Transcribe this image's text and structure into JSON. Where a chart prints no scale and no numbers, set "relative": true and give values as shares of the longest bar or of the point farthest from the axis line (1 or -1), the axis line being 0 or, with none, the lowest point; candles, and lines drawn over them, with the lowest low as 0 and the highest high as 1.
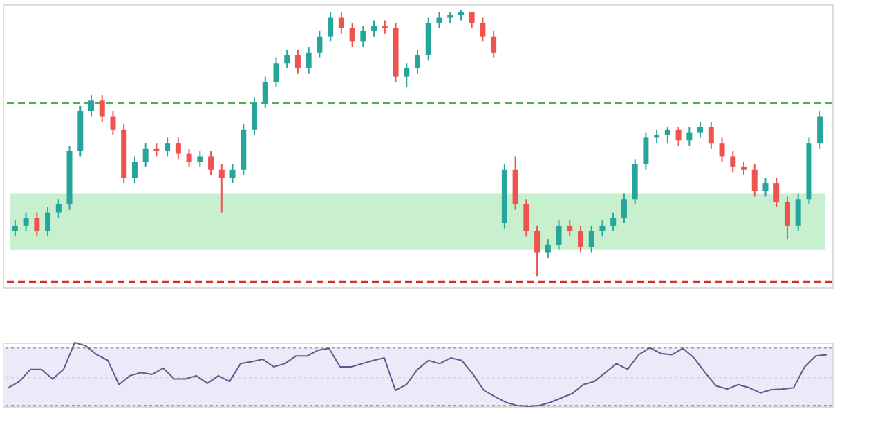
{
  "chart_data": [
    {
      "type": "candlestick",
      "relative": true,
      "categories": [
        null,
        null,
        null,
        null,
        null,
        null,
        null,
        null,
        null,
        null,
        null,
        null,
        null,
        null,
        null,
        null,
        null,
        null,
        null,
        null,
        null,
        null,
        null,
        null,
        null,
        null,
        null,
        null,
        null,
        null,
        null,
        null,
        null,
        null,
        null,
        null,
        null,
        null,
        null,
        null,
        null,
        null,
        null,
        null,
        null,
        null,
        null,
        null,
        null,
        null,
        null,
        null,
        null,
        null,
        null,
        null,
        null,
        null,
        null,
        null,
        null,
        null,
        null,
        null,
        null,
        null,
        null,
        null,
        null,
        null,
        null,
        null,
        null,
        null,
        null
      ],
      "ohlc": [
        [
          0.17,
          0.21,
          0.15,
          0.19
        ],
        [
          0.19,
          0.24,
          0.17,
          0.22
        ],
        [
          0.22,
          0.24,
          0.15,
          0.17
        ],
        [
          0.17,
          0.26,
          0.15,
          0.24
        ],
        [
          0.24,
          0.29,
          0.22,
          0.27
        ],
        [
          0.27,
          0.49,
          0.25,
          0.47
        ],
        [
          0.47,
          0.64,
          0.45,
          0.62
        ],
        [
          0.62,
          0.68,
          0.6,
          0.66
        ],
        [
          0.66,
          0.68,
          0.58,
          0.6
        ],
        [
          0.6,
          0.62,
          0.53,
          0.55
        ],
        [
          0.55,
          0.57,
          0.35,
          0.37
        ],
        [
          0.37,
          0.45,
          0.35,
          0.43
        ],
        [
          0.43,
          0.5,
          0.41,
          0.48
        ],
        [
          0.48,
          0.5,
          0.45,
          0.47
        ],
        [
          0.47,
          0.52,
          0.45,
          0.5
        ],
        [
          0.5,
          0.52,
          0.44,
          0.46
        ],
        [
          0.46,
          0.48,
          0.41,
          0.43
        ],
        [
          0.43,
          0.47,
          0.41,
          0.45
        ],
        [
          0.45,
          0.47,
          0.38,
          0.4
        ],
        [
          0.4,
          0.42,
          0.24,
          0.37
        ],
        [
          0.37,
          0.42,
          0.35,
          0.4
        ],
        [
          0.4,
          0.57,
          0.38,
          0.55
        ],
        [
          0.55,
          0.67,
          0.53,
          0.65
        ],
        [
          0.65,
          0.75,
          0.63,
          0.73
        ],
        [
          0.73,
          0.82,
          0.71,
          0.8
        ],
        [
          0.8,
          0.85,
          0.78,
          0.83
        ],
        [
          0.83,
          0.85,
          0.76,
          0.78
        ],
        [
          0.78,
          0.86,
          0.76,
          0.84
        ],
        [
          0.84,
          0.92,
          0.82,
          0.9
        ],
        [
          0.9,
          0.99,
          0.88,
          0.97
        ],
        [
          0.97,
          0.99,
          0.91,
          0.93
        ],
        [
          0.93,
          0.95,
          0.86,
          0.88
        ],
        [
          0.88,
          0.94,
          0.86,
          0.92
        ],
        [
          0.92,
          0.96,
          0.9,
          0.94
        ],
        [
          0.94,
          0.96,
          0.91,
          0.93
        ],
        [
          0.93,
          0.95,
          0.73,
          0.75
        ],
        [
          0.75,
          0.8,
          0.71,
          0.78
        ],
        [
          0.78,
          0.85,
          0.76,
          0.83
        ],
        [
          0.83,
          0.97,
          0.81,
          0.95
        ],
        [
          0.95,
          0.99,
          0.93,
          0.97
        ],
        [
          0.97,
          0.99,
          0.95,
          0.98
        ],
        [
          0.98,
          1.0,
          0.96,
          0.99
        ],
        [
          0.99,
          0.99,
          0.93,
          0.95
        ],
        [
          0.95,
          0.97,
          0.88,
          0.9
        ],
        [
          0.9,
          0.92,
          0.82,
          0.84
        ],
        [
          0.2,
          0.42,
          0.18,
          0.4
        ],
        [
          0.4,
          0.45,
          0.25,
          0.27
        ],
        [
          0.27,
          0.29,
          0.15,
          0.17
        ],
        [
          0.17,
          0.19,
          0.0,
          0.09
        ],
        [
          0.09,
          0.14,
          0.07,
          0.12
        ],
        [
          0.12,
          0.21,
          0.1,
          0.19
        ],
        [
          0.19,
          0.21,
          0.15,
          0.17
        ],
        [
          0.17,
          0.19,
          0.09,
          0.11
        ],
        [
          0.11,
          0.19,
          0.09,
          0.17
        ],
        [
          0.17,
          0.21,
          0.15,
          0.19
        ],
        [
          0.19,
          0.24,
          0.17,
          0.22
        ],
        [
          0.22,
          0.31,
          0.2,
          0.29
        ],
        [
          0.29,
          0.44,
          0.27,
          0.42
        ],
        [
          0.42,
          0.54,
          0.4,
          0.52
        ],
        [
          0.52,
          0.55,
          0.5,
          0.53
        ],
        [
          0.53,
          0.56,
          0.5,
          0.55
        ],
        [
          0.55,
          0.56,
          0.49,
          0.51
        ],
        [
          0.51,
          0.56,
          0.49,
          0.54
        ],
        [
          0.54,
          0.58,
          0.52,
          0.56
        ],
        [
          0.56,
          0.58,
          0.48,
          0.5
        ],
        [
          0.5,
          0.52,
          0.43,
          0.45
        ],
        [
          0.45,
          0.47,
          0.39,
          0.41
        ],
        [
          0.41,
          0.43,
          0.38,
          0.4
        ],
        [
          0.4,
          0.42,
          0.3,
          0.32
        ],
        [
          0.32,
          0.37,
          0.3,
          0.35
        ],
        [
          0.35,
          0.37,
          0.26,
          0.28
        ],
        [
          0.28,
          0.3,
          0.14,
          0.19
        ],
        [
          0.19,
          0.31,
          0.17,
          0.29
        ],
        [
          0.29,
          0.52,
          0.27,
          0.5
        ],
        [
          0.5,
          0.62,
          0.48,
          0.6
        ]
      ],
      "colors": [
        "#26a69a",
        "#26a69a",
        "#ef5350",
        "#26a69a",
        "#26a69a",
        "#26a69a",
        "#26a69a",
        "#26a69a",
        "#ef5350",
        "#ef5350",
        "#ef5350",
        "#26a69a",
        "#26a69a",
        "#ef5350",
        "#26a69a",
        "#ef5350",
        "#ef5350",
        "#26a69a",
        "#ef5350",
        "#ef5350",
        "#26a69a",
        "#26a69a",
        "#26a69a",
        "#26a69a",
        "#26a69a",
        "#26a69a",
        "#ef5350",
        "#26a69a",
        "#26a69a",
        "#26a69a",
        "#ef5350",
        "#ef5350",
        "#26a69a",
        "#26a69a",
        "#ef5350",
        "#ef5350",
        "#26a69a",
        "#26a69a",
        "#26a69a",
        "#26a69a",
        "#26a69a",
        "#26a69a",
        "#ef5350",
        "#ef5350",
        "#ef5350",
        "#26a69a",
        "#ef5350",
        "#ef5350",
        "#ef5350",
        "#26a69a",
        "#26a69a",
        "#ef5350",
        "#ef5350",
        "#26a69a",
        "#26a69a",
        "#26a69a",
        "#26a69a",
        "#26a69a",
        "#26a69a",
        "#26a69a",
        "#26a69a",
        "#ef5350",
        "#26a69a",
        "#26a69a",
        "#ef5350",
        "#ef5350",
        "#ef5350",
        "#ef5350",
        "#ef5350",
        "#26a69a",
        "#ef5350",
        "#ef5350",
        "#26a69a",
        "#26a69a",
        "#26a69a"
      ],
      "bands": [
        {
          "axis": "y",
          "from": 0.1,
          "to": 0.31,
          "color": "#c8f0cf"
        }
      ],
      "ref_lines": [
        {
          "axis": "y",
          "value": 0.65,
          "color": "#4caf50",
          "line_style": "dashed"
        },
        {
          "axis": "y",
          "value": -0.02,
          "color": "#d32f2f",
          "line_style": "dashed"
        }
      ]
    },
    {
      "type": "line",
      "relative": true,
      "line_style": "solid",
      "marker": "none",
      "categories": [
        null,
        null,
        null,
        null,
        null,
        null,
        null,
        null,
        null,
        null,
        null,
        null,
        null,
        null,
        null,
        null,
        null,
        null,
        null,
        null,
        null,
        null,
        null,
        null,
        null,
        null,
        null,
        null,
        null,
        null,
        null,
        null,
        null,
        null,
        null,
        null,
        null,
        null,
        null,
        null,
        null,
        null,
        null,
        null,
        null,
        null,
        null,
        null,
        null,
        null,
        null,
        null,
        null,
        null,
        null,
        null,
        null,
        null,
        null,
        null,
        null,
        null,
        null,
        null,
        null,
        null,
        null,
        null,
        null,
        null,
        null,
        null,
        null,
        null,
        null
      ],
      "series": [
        {
          "color": "#5c5b8c",
          "values": [
            0.29,
            0.39,
            0.58,
            0.58,
            0.43,
            0.58,
            1.0,
            0.95,
            0.81,
            0.72,
            0.34,
            0.48,
            0.53,
            0.5,
            0.6,
            0.43,
            0.43,
            0.48,
            0.36,
            0.48,
            0.39,
            0.67,
            0.7,
            0.74,
            0.62,
            0.67,
            0.79,
            0.79,
            0.88,
            0.91,
            0.62,
            0.62,
            0.67,
            0.72,
            0.76,
            0.25,
            0.34,
            0.58,
            0.72,
            0.67,
            0.76,
            0.72,
            0.51,
            0.25,
            0.15,
            0.06,
            0.01,
            0.0,
            0.01,
            0.06,
            0.13,
            0.2,
            0.34,
            0.39,
            0.53,
            0.67,
            0.58,
            0.81,
            0.92,
            0.83,
            0.81,
            0.91,
            0.76,
            0.53,
            0.32,
            0.27,
            0.34,
            0.29,
            0.21,
            0.26,
            0.27,
            0.29,
            0.62,
            0.79,
            0.81
          ]
        }
      ],
      "bands": [
        {
          "axis": "y",
          "from": 0.01,
          "to": 0.92,
          "color": "#eee9f8"
        }
      ],
      "ref_lines": [
        {
          "axis": "y",
          "value": 0.92,
          "color": "#9e9e9e",
          "line_style": "dotted"
        },
        {
          "axis": "y",
          "value": 0.45,
          "color": "#d9d4e6",
          "line_style": "dotted"
        },
        {
          "axis": "y",
          "value": 0.01,
          "color": "#9e9e9e",
          "line_style": "dotted"
        }
      ]
    }
  ]
}
